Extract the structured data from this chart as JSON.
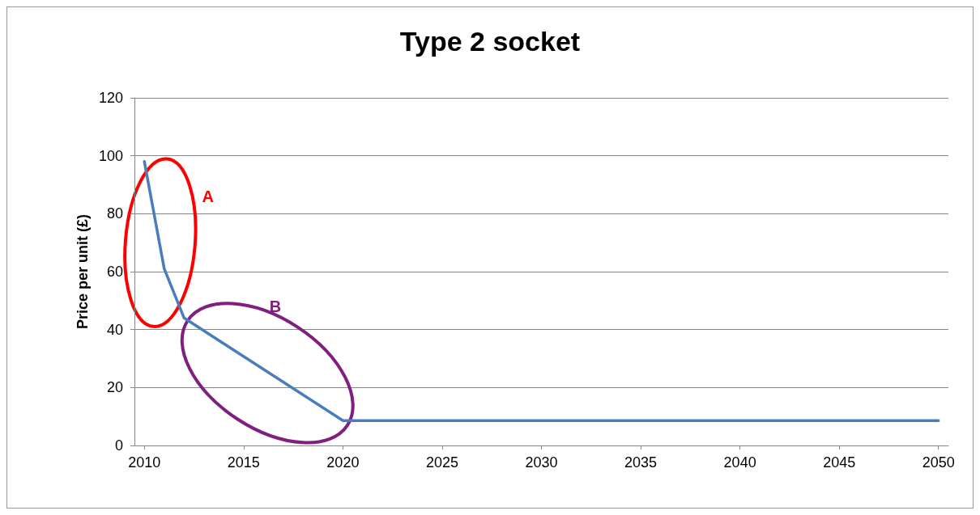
{
  "chart_data": {
    "type": "line",
    "title": "Type 2 socket",
    "ylabel": "Price per unit (£)",
    "x": [
      2010,
      2011,
      2012,
      2020,
      2025,
      2030,
      2035,
      2040,
      2045,
      2050
    ],
    "values": [
      98,
      61,
      44,
      8.6,
      8.6,
      8.6,
      8.6,
      8.6,
      8.6,
      8.6
    ],
    "color": "#4a7ebb",
    "xlim": [
      2009.5,
      2050.5
    ],
    "xticks": [
      2010,
      2015,
      2020,
      2025,
      2030,
      2035,
      2040,
      2045,
      2050
    ],
    "ylim": [
      0,
      120
    ],
    "yticks": [
      0,
      20,
      40,
      60,
      80,
      100,
      120
    ],
    "grid": "y",
    "marker": "none",
    "line_style": "solid",
    "annotations": [
      "A",
      "B"
    ]
  }
}
